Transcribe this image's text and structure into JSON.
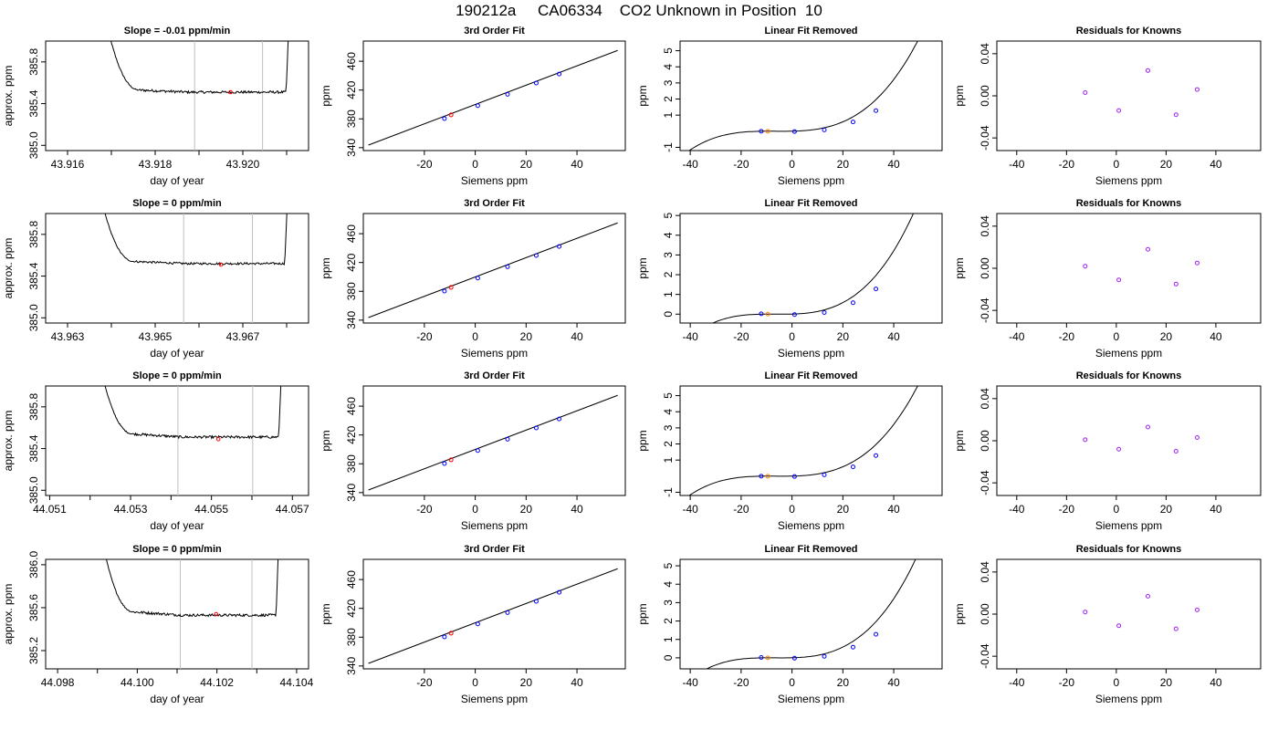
{
  "page_title": "190212a     CA06334    CO2 Unknown in Position  10",
  "labels": {
    "trace_ylabel": "approx. ppm",
    "trace_xlabel": "day of year",
    "siemens_xlabel": "Siemens ppm",
    "ppm_ylabel": "ppm",
    "fit_title": "3rd Order Fit",
    "linear_title": "Linear Fit Removed",
    "resid_title": "Residuals for Knowns"
  },
  "colors": {
    "line": "#000000",
    "unknown_point": "#ff0000",
    "known_point": "#0000ff",
    "sample_point": "#ff8000",
    "residual_point": "#a020f0",
    "window_line": "#c0c0c0"
  },
  "chart_data": [
    {
      "row": 1,
      "trace": {
        "type": "line",
        "title": "Slope =  -0.01  ppm/min",
        "xlim": [
          43.9155,
          43.9215
        ],
        "ylim": [
          384.95,
          386.0
        ],
        "xticks": [
          43.916,
          43.917,
          43.918,
          43.919,
          43.92,
          43.921
        ],
        "xtick_labels": [
          "43.916",
          "",
          "43.918",
          "",
          "43.920",
          ""
        ],
        "yticks": [
          385.0,
          385.4,
          385.8
        ],
        "ytick_labels": [
          "385.0",
          "385.4",
          "385.8"
        ],
        "window": [
          43.9189,
          43.92045
        ],
        "x_start": 43.9169,
        "x_end": 43.92105,
        "drop_to": 385.53,
        "baseline": 385.51,
        "noise": 0.012,
        "marker": {
          "x": 43.91972,
          "y": 385.51
        }
      },
      "fit": {
        "type": "line",
        "title": "3rd Order Fit",
        "xlim": [
          -44,
          59
        ],
        "ylim": [
          336,
          488
        ],
        "xticks": [
          -20,
          0,
          20,
          40
        ],
        "yticks": [
          340,
          380,
          420,
          460
        ],
        "line": [
          [
            -42,
            343.6
          ],
          [
            56,
            475.0
          ]
        ],
        "known": [
          [
            -12.1,
            380.4
          ],
          [
            1.0,
            398.4
          ],
          [
            12.7,
            414.1
          ],
          [
            24.0,
            429.7
          ],
          [
            33.0,
            442.2
          ]
        ],
        "unknown": [
          [
            -9.5,
            385.5
          ]
        ]
      },
      "linear": {
        "type": "line",
        "title": "Linear Fit Removed",
        "xlim": [
          -44,
          59
        ],
        "ylim": [
          -1.2,
          5.6
        ],
        "xticks": [
          -40,
          -20,
          0,
          20,
          40
        ],
        "yticks": [
          -1,
          1,
          2,
          3,
          4,
          5
        ],
        "ytick_labels": [
          "-1",
          "1",
          "2",
          "3",
          "4",
          "5"
        ],
        "curve_offset": 0,
        "known": [
          [
            -12.1,
            0.0
          ],
          [
            1.0,
            -0.02
          ],
          [
            12.7,
            0.08
          ],
          [
            24.0,
            0.58
          ],
          [
            33.0,
            1.28
          ]
        ],
        "sample": [
          [
            -9.5,
            0.0
          ]
        ]
      },
      "resid": {
        "type": "scatter",
        "title": "Residuals for Knowns",
        "xlim": [
          -48,
          58
        ],
        "ylim": [
          -0.052,
          0.052
        ],
        "xticks": [
          -40,
          -20,
          0,
          20,
          40
        ],
        "yticks": [
          -0.04,
          0.0,
          0.04
        ],
        "ytick_labels": [
          "-0.04",
          "0.00",
          "0.04"
        ],
        "points": [
          [
            -12.5,
            0.003
          ],
          [
            1.0,
            -0.014
          ],
          [
            12.7,
            0.024
          ],
          [
            24.0,
            -0.018
          ],
          [
            32.5,
            0.006
          ]
        ]
      }
    },
    {
      "row": 2,
      "trace": {
        "type": "line",
        "title": "Slope =  0  ppm/min",
        "xlim": [
          43.9625,
          43.9685
        ],
        "ylim": [
          384.95,
          386.0
        ],
        "xticks": [
          43.963,
          43.964,
          43.965,
          43.966,
          43.967,
          43.968
        ],
        "xtick_labels": [
          "43.963",
          "",
          "43.965",
          "",
          "43.967",
          ""
        ],
        "yticks": [
          385.0,
          385.4,
          385.8
        ],
        "ytick_labels": [
          "385.0",
          "385.4",
          "385.8"
        ],
        "window": [
          43.96565,
          43.96722
        ],
        "x_start": 43.96376,
        "x_end": 43.96802,
        "drop_to": 385.54,
        "baseline": 385.52,
        "noise": 0.01,
        "marker": {
          "x": 43.9665,
          "y": 385.51
        }
      },
      "fit": {
        "type": "line",
        "title": "3rd Order Fit",
        "xlim": [
          -44,
          59
        ],
        "ylim": [
          336,
          488
        ],
        "xticks": [
          -20,
          0,
          20,
          40
        ],
        "yticks": [
          340,
          380,
          420,
          460
        ],
        "line": [
          [
            -42,
            343.6
          ],
          [
            56,
            475.0
          ]
        ],
        "known": [
          [
            -12.1,
            380.4
          ],
          [
            1.0,
            398.4
          ],
          [
            12.7,
            414.1
          ],
          [
            24.0,
            429.7
          ],
          [
            33.0,
            442.2
          ]
        ],
        "unknown": [
          [
            -9.5,
            385.5
          ]
        ]
      },
      "linear": {
        "type": "line",
        "title": "Linear Fit Removed",
        "xlim": [
          -44,
          59
        ],
        "ylim": [
          -0.45,
          5.1
        ],
        "xticks": [
          -40,
          -20,
          0,
          20,
          40
        ],
        "yticks": [
          0,
          1,
          2,
          3,
          4,
          5
        ],
        "ytick_labels": [
          "0",
          "1",
          "2",
          "3",
          "4",
          "5"
        ],
        "curve_offset": 0,
        "known": [
          [
            -12.1,
            0.02
          ],
          [
            1.0,
            -0.02
          ],
          [
            12.7,
            0.08
          ],
          [
            24.0,
            0.58
          ],
          [
            33.0,
            1.28
          ]
        ],
        "sample": [
          [
            -9.5,
            0.0
          ]
        ]
      },
      "resid": {
        "type": "scatter",
        "title": "Residuals for Knowns",
        "xlim": [
          -48,
          58
        ],
        "ylim": [
          -0.052,
          0.052
        ],
        "xticks": [
          -40,
          -20,
          0,
          20,
          40
        ],
        "yticks": [
          -0.04,
          0.0,
          0.04
        ],
        "ytick_labels": [
          "-0.04",
          "0.00",
          "0.04"
        ],
        "points": [
          [
            -12.5,
            0.002
          ],
          [
            1.0,
            -0.011
          ],
          [
            12.7,
            0.018
          ],
          [
            24.0,
            -0.015
          ],
          [
            32.5,
            0.005
          ]
        ]
      }
    },
    {
      "row": 3,
      "trace": {
        "type": "line",
        "title": "Slope =  0  ppm/min",
        "xlim": [
          44.0509,
          44.0574
        ],
        "ylim": [
          384.95,
          386.0
        ],
        "xticks": [
          44.051,
          44.052,
          44.053,
          44.054,
          44.055,
          44.056,
          44.057
        ],
        "xtick_labels": [
          "44.051",
          "",
          "44.053",
          "",
          "44.055",
          "",
          "44.057"
        ],
        "yticks": [
          385.0,
          385.4,
          385.8
        ],
        "ytick_labels": [
          "385.0",
          "385.4",
          "385.8"
        ],
        "window": [
          44.05417,
          44.05602
        ],
        "x_start": 44.05227,
        "x_end": 44.05673,
        "drop_to": 385.54,
        "baseline": 385.51,
        "noise": 0.012,
        "marker": {
          "x": 44.05517,
          "y": 385.49
        }
      },
      "fit": {
        "type": "line",
        "title": "3rd Order Fit",
        "xlim": [
          -44,
          59
        ],
        "ylim": [
          336,
          488
        ],
        "xticks": [
          -20,
          0,
          20,
          40
        ],
        "yticks": [
          340,
          380,
          420,
          460
        ],
        "line": [
          [
            -42,
            343.6
          ],
          [
            56,
            475.0
          ]
        ],
        "known": [
          [
            -12.1,
            380.4
          ],
          [
            1.0,
            398.4
          ],
          [
            12.7,
            414.1
          ],
          [
            24.0,
            429.7
          ],
          [
            33.0,
            442.2
          ]
        ],
        "unknown": [
          [
            -9.5,
            385.5
          ]
        ]
      },
      "linear": {
        "type": "line",
        "title": "Linear Fit Removed",
        "xlim": [
          -44,
          59
        ],
        "ylim": [
          -1.2,
          5.6
        ],
        "xticks": [
          -40,
          -20,
          0,
          20,
          40
        ],
        "yticks": [
          -1,
          1,
          2,
          3,
          4,
          5
        ],
        "ytick_labels": [
          "-1",
          "1",
          "2",
          "3",
          "4",
          "5"
        ],
        "curve_offset": 0,
        "known": [
          [
            -12.1,
            0.0
          ],
          [
            1.0,
            -0.02
          ],
          [
            12.7,
            0.08
          ],
          [
            24.0,
            0.58
          ],
          [
            33.0,
            1.28
          ]
        ],
        "sample": [
          [
            -9.5,
            0.0
          ]
        ]
      },
      "resid": {
        "type": "scatter",
        "title": "Residuals for Knowns",
        "xlim": [
          -48,
          58
        ],
        "ylim": [
          -0.052,
          0.052
        ],
        "xticks": [
          -40,
          -20,
          0,
          20,
          40
        ],
        "yticks": [
          -0.04,
          0.0,
          0.04
        ],
        "ytick_labels": [
          "-0.04",
          "0.00",
          "0.04"
        ],
        "points": [
          [
            -12.5,
            0.001
          ],
          [
            1.0,
            -0.008
          ],
          [
            12.7,
            0.013
          ],
          [
            24.0,
            -0.01
          ],
          [
            32.5,
            0.003
          ]
        ]
      }
    },
    {
      "row": 4,
      "trace": {
        "type": "line",
        "title": "Slope =  0  ppm/min",
        "xlim": [
          44.0977,
          44.1043
        ],
        "ylim": [
          385.03,
          386.05
        ],
        "xticks": [
          44.098,
          44.099,
          44.1,
          44.101,
          44.102,
          44.103,
          44.104
        ],
        "xtick_labels": [
          "44.098",
          "",
          "44.100",
          "",
          "44.102",
          "",
          "44.104"
        ],
        "yticks": [
          385.2,
          385.6,
          386.0
        ],
        "ytick_labels": [
          "385.2",
          "385.6",
          "386.0"
        ],
        "window": [
          44.10108,
          44.10288
        ],
        "x_start": 44.09913,
        "x_end": 44.10355,
        "drop_to": 385.56,
        "baseline": 385.53,
        "noise": 0.012,
        "marker": {
          "x": 44.10198,
          "y": 385.54
        }
      },
      "fit": {
        "type": "line",
        "title": "3rd Order Fit",
        "xlim": [
          -44,
          59
        ],
        "ylim": [
          336,
          488
        ],
        "xticks": [
          -20,
          0,
          20,
          40
        ],
        "yticks": [
          340,
          380,
          420,
          460
        ],
        "line": [
          [
            -42,
            343.6
          ],
          [
            56,
            475.0
          ]
        ],
        "known": [
          [
            -12.1,
            380.4
          ],
          [
            1.0,
            398.4
          ],
          [
            12.7,
            414.1
          ],
          [
            24.0,
            429.7
          ],
          [
            33.0,
            442.2
          ]
        ],
        "unknown": [
          [
            -9.5,
            385.5
          ]
        ]
      },
      "linear": {
        "type": "line",
        "title": "Linear Fit Removed",
        "xlim": [
          -44,
          59
        ],
        "ylim": [
          -0.6,
          5.35
        ],
        "xticks": [
          -40,
          -20,
          0,
          20,
          40
        ],
        "yticks": [
          0,
          1,
          2,
          3,
          4,
          5
        ],
        "ytick_labels": [
          "0",
          "1",
          "2",
          "3",
          "4",
          "5"
        ],
        "curve_offset": 0,
        "known": [
          [
            -12.1,
            0.02
          ],
          [
            1.0,
            -0.02
          ],
          [
            12.7,
            0.08
          ],
          [
            24.0,
            0.58
          ],
          [
            33.0,
            1.28
          ]
        ],
        "sample": [
          [
            -9.5,
            0.0
          ]
        ]
      },
      "resid": {
        "type": "scatter",
        "title": "Residuals for Knowns",
        "xlim": [
          -48,
          58
        ],
        "ylim": [
          -0.052,
          0.052
        ],
        "xticks": [
          -40,
          -20,
          0,
          20,
          40
        ],
        "yticks": [
          -0.04,
          0.0,
          0.04
        ],
        "ytick_labels": [
          "-0.04",
          "0.00",
          "0.04"
        ],
        "points": [
          [
            -12.5,
            0.002
          ],
          [
            1.0,
            -0.011
          ],
          [
            12.7,
            0.017
          ],
          [
            24.0,
            -0.014
          ],
          [
            32.5,
            0.004
          ]
        ]
      }
    }
  ]
}
